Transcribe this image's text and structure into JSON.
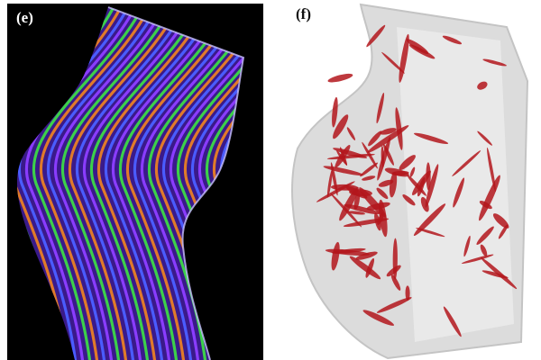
{
  "figure": {
    "panels": [
      {
        "label": "(e)",
        "background": "#000000",
        "stripe_colors": [
          "#8a3cff",
          "#3cd04a",
          "#e07a2a",
          "#4a5cff"
        ]
      },
      {
        "label": "(f)",
        "background": "#ffffff",
        "volume_color": "#d8d8d8",
        "inclusion_color": "#b3161c"
      }
    ]
  }
}
